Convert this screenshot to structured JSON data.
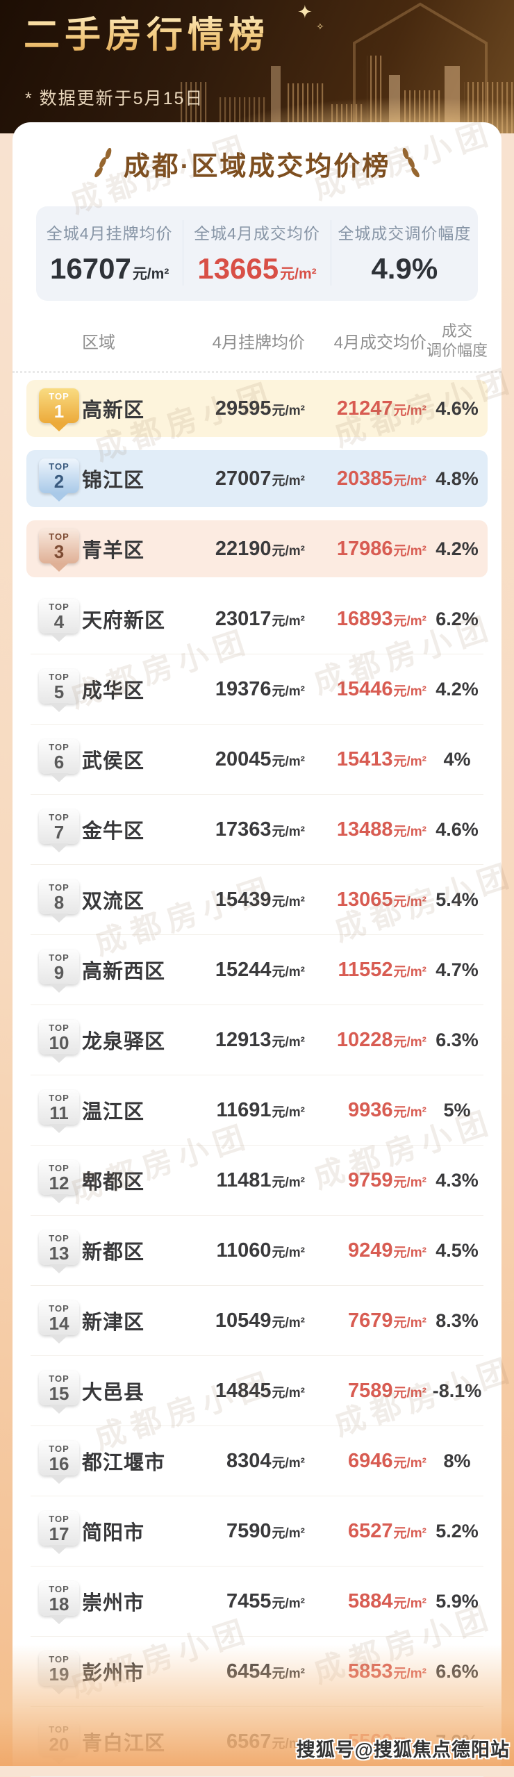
{
  "page": {
    "title": "二手房行情榜",
    "subtitle": "* 数据更新于5月15日",
    "watermark_diagonal": "成都房小团",
    "watermark_bottom": "搜狐号@搜狐焦点德阳站"
  },
  "card": {
    "title": "成都·区域成交均价榜",
    "badge_label": "TOP",
    "summary_labels": [
      "全城4月挂牌均价",
      "全城4月成交均价",
      "全城成交调价幅度"
    ],
    "table": {
      "col_region": "区域",
      "col_listing": "4月挂牌均价",
      "col_deal": "4月成交均价",
      "col_adjust_lines": [
        "成交",
        "调价幅度"
      ]
    }
  },
  "colors": {
    "accent_red": "#d84f46",
    "gold_title": "#f3cd85",
    "header_bg": "#2e1a0b",
    "row1_bg": "#fdf4dc",
    "row2_bg": "#e1edf8",
    "row3_bg": "#fcebe1"
  },
  "chart_data": {
    "type": "table",
    "title": "成都·区域成交均价榜",
    "unit": "元/m²",
    "citywide": {
      "listing_avg": 16707,
      "deal_avg": 13665,
      "adjust": "4.9%"
    },
    "columns": [
      "区域",
      "4月挂牌均价",
      "4月成交均价",
      "成交调价幅度"
    ],
    "rows": [
      {
        "rank": 1,
        "region": "高新区",
        "listing_avg": 29595,
        "deal_avg": 21247,
        "adjust": "4.6%"
      },
      {
        "rank": 2,
        "region": "锦江区",
        "listing_avg": 27007,
        "deal_avg": 20385,
        "adjust": "4.8%"
      },
      {
        "rank": 3,
        "region": "青羊区",
        "listing_avg": 22190,
        "deal_avg": 17986,
        "adjust": "4.2%"
      },
      {
        "rank": 4,
        "region": "天府新区",
        "listing_avg": 23017,
        "deal_avg": 16893,
        "adjust": "6.2%"
      },
      {
        "rank": 5,
        "region": "成华区",
        "listing_avg": 19376,
        "deal_avg": 15446,
        "adjust": "4.2%"
      },
      {
        "rank": 6,
        "region": "武侯区",
        "listing_avg": 20045,
        "deal_avg": 15413,
        "adjust": "4%"
      },
      {
        "rank": 7,
        "region": "金牛区",
        "listing_avg": 17363,
        "deal_avg": 13488,
        "adjust": "4.6%"
      },
      {
        "rank": 8,
        "region": "双流区",
        "listing_avg": 15439,
        "deal_avg": 13065,
        "adjust": "5.4%"
      },
      {
        "rank": 9,
        "region": "高新西区",
        "listing_avg": 15244,
        "deal_avg": 11552,
        "adjust": "4.7%"
      },
      {
        "rank": 10,
        "region": "龙泉驿区",
        "listing_avg": 12913,
        "deal_avg": 10228,
        "adjust": "6.3%"
      },
      {
        "rank": 11,
        "region": "温江区",
        "listing_avg": 11691,
        "deal_avg": 9936,
        "adjust": "5%"
      },
      {
        "rank": 12,
        "region": "郫都区",
        "listing_avg": 11481,
        "deal_avg": 9759,
        "adjust": "4.3%"
      },
      {
        "rank": 13,
        "region": "新都区",
        "listing_avg": 11060,
        "deal_avg": 9249,
        "adjust": "4.5%"
      },
      {
        "rank": 14,
        "region": "新津区",
        "listing_avg": 10549,
        "deal_avg": 7679,
        "adjust": "8.3%"
      },
      {
        "rank": 15,
        "region": "大邑县",
        "listing_avg": 14845,
        "deal_avg": 7589,
        "adjust": "-8.1%"
      },
      {
        "rank": 16,
        "region": "都江堰市",
        "listing_avg": 8304,
        "deal_avg": 6946,
        "adjust": "8%"
      },
      {
        "rank": 17,
        "region": "简阳市",
        "listing_avg": 7590,
        "deal_avg": 6527,
        "adjust": "5.2%"
      },
      {
        "rank": 18,
        "region": "崇州市",
        "listing_avg": 7455,
        "deal_avg": 5884,
        "adjust": "5.9%"
      },
      {
        "rank": 19,
        "region": "彭州市",
        "listing_avg": 6454,
        "deal_avg": 5853,
        "adjust": "6.6%"
      },
      {
        "rank": 20,
        "region": "青白江区",
        "listing_avg": 6567,
        "deal_avg": 5560,
        "adjust": "7.9%"
      }
    ]
  }
}
